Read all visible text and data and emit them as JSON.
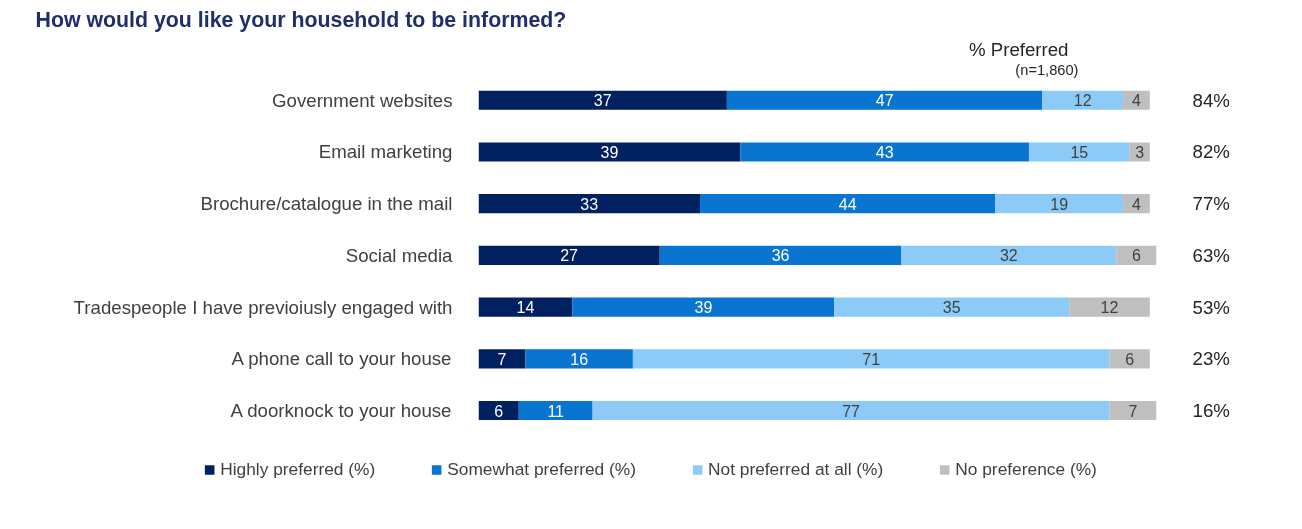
{
  "chart_data": {
    "type": "bar",
    "orientation": "horizontal",
    "stacked": true,
    "title": "How would you like your household to be informed?",
    "categories": [
      "Government websites",
      "Email marketing",
      "Brochure/catalogue in the mail",
      "Social media",
      "Tradespeople I have previoiusly engaged with",
      "A phone call to your house",
      "A doorknock to your house"
    ],
    "series": [
      {
        "name": "Highly preferred (%)",
        "color": "#002060",
        "values": [
          37,
          39,
          33,
          27,
          14,
          7,
          6
        ]
      },
      {
        "name": "Somewhat preferred (%)",
        "color": "#0a75d1",
        "values": [
          47,
          43,
          44,
          36,
          39,
          16,
          11
        ]
      },
      {
        "name": "Not preferred at all (%)",
        "color": "#8ccbf7",
        "values": [
          12,
          15,
          19,
          32,
          35,
          71,
          77
        ]
      },
      {
        "name": "No preference (%)",
        "color": "#bfbfbf",
        "values": [
          4,
          3,
          4,
          6,
          12,
          6,
          7
        ]
      }
    ],
    "xlim": [
      0,
      101
    ],
    "tick_labels": "y",
    "legend": "bottom",
    "data_labels": true,
    "annotations": [
      "% Preferred",
      "(n=1,860)",
      "84%",
      "82%",
      "77%",
      "63%",
      "53%",
      "23%",
      "16%"
    ]
  }
}
